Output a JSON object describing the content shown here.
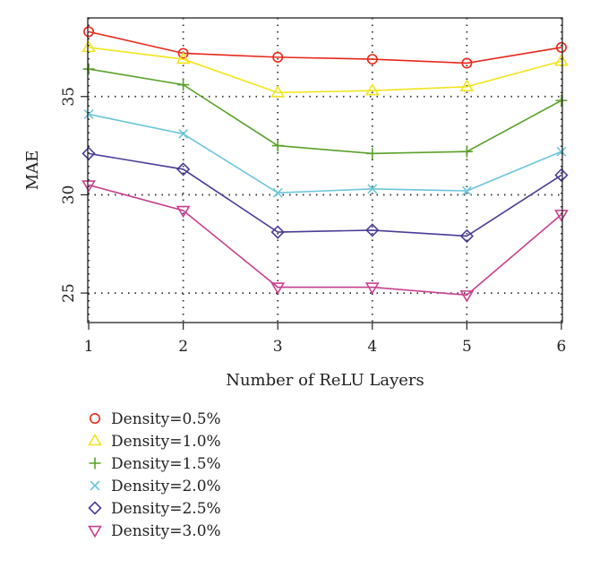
{
  "chart_data": {
    "type": "line",
    "title": "",
    "xlabel": "Number of ReLU Layers",
    "ylabel": "MAE",
    "x": [
      1,
      2,
      3,
      4,
      5,
      6
    ],
    "xlim": [
      0.99,
      6.01
    ],
    "ylim": [
      23.5,
      39.0
    ],
    "xticks": [
      1,
      2,
      3,
      4,
      5,
      6
    ],
    "yticks": [
      25,
      30,
      35
    ],
    "grid": "dotted",
    "legend_position": "bottom-left",
    "series": [
      {
        "name": "Density=0.5%",
        "marker": "circle",
        "color": "#e8281a",
        "values": [
          38.3,
          37.2,
          37.0,
          36.9,
          36.7,
          37.5
        ]
      },
      {
        "name": "Density=1.0%",
        "marker": "triangle-up",
        "color": "#f2e51c",
        "values": [
          37.5,
          36.9,
          35.2,
          35.3,
          35.5,
          36.8
        ]
      },
      {
        "name": "Density=1.5%",
        "marker": "plus",
        "color": "#5aa12a",
        "values": [
          36.4,
          35.6,
          32.5,
          32.1,
          32.2,
          34.8
        ]
      },
      {
        "name": "Density=2.0%",
        "marker": "x",
        "color": "#6cc6dc",
        "values": [
          34.1,
          33.1,
          30.1,
          30.3,
          30.2,
          32.2
        ]
      },
      {
        "name": "Density=2.5%",
        "marker": "diamond",
        "color": "#4a3c98",
        "values": [
          32.1,
          31.3,
          28.1,
          28.2,
          27.9,
          31.0
        ]
      },
      {
        "name": "Density=3.0%",
        "marker": "triangle-down",
        "color": "#c8408f",
        "values": [
          30.5,
          29.2,
          25.3,
          25.3,
          24.9,
          29.0
        ]
      }
    ]
  }
}
